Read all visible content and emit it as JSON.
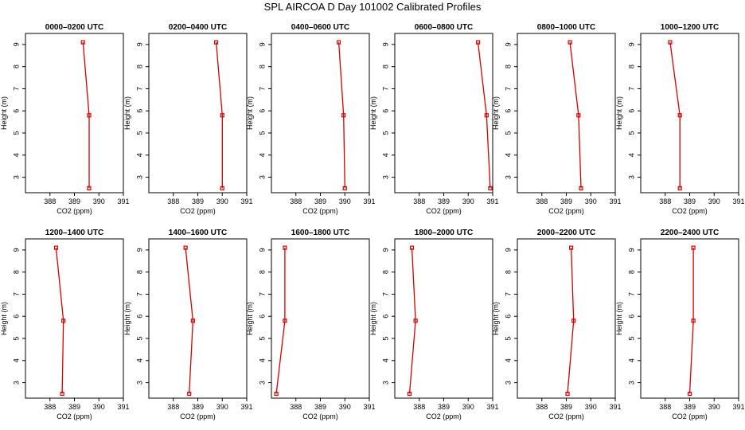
{
  "title": "SPL AIRCOA D  Day 101002  Calibrated Profiles",
  "colors": {
    "line": "#d40000",
    "axis": "#000000"
  },
  "chart_data": [
    {
      "type": "line",
      "title": "0000–0200 UTC",
      "xlabel": "CO2 (ppm)",
      "ylabel": "Height (m)",
      "xlim": [
        387,
        391
      ],
      "ylim": [
        2.3,
        9.5
      ],
      "xticks": [
        388,
        389,
        390,
        391
      ],
      "yticks": [
        3,
        4,
        5,
        6,
        7,
        8,
        9
      ],
      "grid": false,
      "series": [
        {
          "x": [
            389.6,
            389.6,
            389.35
          ],
          "y": [
            2.5,
            5.8,
            9.1
          ]
        }
      ]
    },
    {
      "type": "line",
      "title": "0200–0400 UTC",
      "xlabel": "CO2 (ppm)",
      "ylabel": "Height (m)",
      "xlim": [
        387,
        391
      ],
      "ylim": [
        2.3,
        9.5
      ],
      "xticks": [
        388,
        389,
        390,
        391
      ],
      "yticks": [
        3,
        4,
        5,
        6,
        7,
        8,
        9
      ],
      "grid": false,
      "series": [
        {
          "x": [
            390.0,
            390.0,
            389.75
          ],
          "y": [
            2.5,
            5.8,
            9.1
          ]
        }
      ]
    },
    {
      "type": "line",
      "title": "0400–0600 UTC",
      "xlabel": "CO2 (ppm)",
      "ylabel": "Height (m)",
      "xlim": [
        387,
        391
      ],
      "ylim": [
        2.3,
        9.5
      ],
      "xticks": [
        388,
        389,
        390,
        391
      ],
      "yticks": [
        3,
        4,
        5,
        6,
        7,
        8,
        9
      ],
      "grid": false,
      "series": [
        {
          "x": [
            390.0,
            389.95,
            389.75
          ],
          "y": [
            2.5,
            5.8,
            9.1
          ]
        }
      ]
    },
    {
      "type": "line",
      "title": "0600–0800 UTC",
      "xlabel": "CO2 (ppm)",
      "ylabel": "Height (m)",
      "xlim": [
        387,
        391
      ],
      "ylim": [
        2.3,
        9.5
      ],
      "xticks": [
        388,
        389,
        390,
        391
      ],
      "yticks": [
        3,
        4,
        5,
        6,
        7,
        8,
        9
      ],
      "grid": false,
      "series": [
        {
          "x": [
            390.9,
            390.75,
            390.4
          ],
          "y": [
            2.5,
            5.8,
            9.1
          ]
        }
      ]
    },
    {
      "type": "line",
      "title": "0800–1000 UTC",
      "xlabel": "CO2 (ppm)",
      "ylabel": "Height (m)",
      "xlim": [
        387,
        391
      ],
      "ylim": [
        2.3,
        9.5
      ],
      "xticks": [
        388,
        389,
        390,
        391
      ],
      "yticks": [
        3,
        4,
        5,
        6,
        7,
        8,
        9
      ],
      "grid": false,
      "series": [
        {
          "x": [
            389.6,
            389.5,
            389.15
          ],
          "y": [
            2.5,
            5.8,
            9.1
          ]
        }
      ]
    },
    {
      "type": "line",
      "title": "1000–1200 UTC",
      "xlabel": "CO2 (ppm)",
      "ylabel": "Height (m)",
      "xlim": [
        387,
        391
      ],
      "ylim": [
        2.3,
        9.5
      ],
      "xticks": [
        388,
        389,
        390,
        391
      ],
      "yticks": [
        3,
        4,
        5,
        6,
        7,
        8,
        9
      ],
      "grid": false,
      "series": [
        {
          "x": [
            388.6,
            388.6,
            388.2
          ],
          "y": [
            2.5,
            5.8,
            9.1
          ]
        }
      ]
    },
    {
      "type": "line",
      "title": "1200–1400 UTC",
      "xlabel": "CO2 (ppm)",
      "ylabel": "Height (m)",
      "xlim": [
        387,
        391
      ],
      "ylim": [
        2.3,
        9.5
      ],
      "xticks": [
        388,
        389,
        390,
        391
      ],
      "yticks": [
        3,
        4,
        5,
        6,
        7,
        8,
        9
      ],
      "grid": false,
      "series": [
        {
          "x": [
            388.5,
            388.55,
            388.25
          ],
          "y": [
            2.5,
            5.8,
            9.1
          ]
        }
      ]
    },
    {
      "type": "line",
      "title": "1400–1600 UTC",
      "xlabel": "CO2 (ppm)",
      "ylabel": "Height (m)",
      "xlim": [
        387,
        391
      ],
      "ylim": [
        2.3,
        9.5
      ],
      "xticks": [
        388,
        389,
        390,
        391
      ],
      "yticks": [
        3,
        4,
        5,
        6,
        7,
        8,
        9
      ],
      "grid": false,
      "series": [
        {
          "x": [
            388.65,
            388.8,
            388.5
          ],
          "y": [
            2.5,
            5.8,
            9.1
          ]
        }
      ]
    },
    {
      "type": "line",
      "title": "1600–1800 UTC",
      "xlabel": "CO2 (ppm)",
      "ylabel": "Height (m)",
      "xlim": [
        387,
        391
      ],
      "ylim": [
        2.3,
        9.5
      ],
      "xticks": [
        388,
        389,
        390,
        391
      ],
      "yticks": [
        3,
        4,
        5,
        6,
        7,
        8,
        9
      ],
      "grid": false,
      "series": [
        {
          "x": [
            387.2,
            387.55,
            387.55
          ],
          "y": [
            2.5,
            5.8,
            9.1
          ]
        }
      ]
    },
    {
      "type": "line",
      "title": "1800–2000 UTC",
      "xlabel": "CO2 (ppm)",
      "ylabel": "Height (m)",
      "xlim": [
        387,
        391
      ],
      "ylim": [
        2.3,
        9.5
      ],
      "xticks": [
        388,
        389,
        390,
        391
      ],
      "yticks": [
        3,
        4,
        5,
        6,
        7,
        8,
        9
      ],
      "grid": false,
      "series": [
        {
          "x": [
            387.6,
            387.85,
            387.7
          ],
          "y": [
            2.5,
            5.8,
            9.1
          ]
        }
      ]
    },
    {
      "type": "line",
      "title": "2000–2200 UTC",
      "xlabel": "CO2 (ppm)",
      "ylabel": "Height (m)",
      "xlim": [
        387,
        391
      ],
      "ylim": [
        2.3,
        9.5
      ],
      "xticks": [
        388,
        389,
        390,
        391
      ],
      "yticks": [
        3,
        4,
        5,
        6,
        7,
        8,
        9
      ],
      "grid": false,
      "series": [
        {
          "x": [
            389.05,
            389.3,
            389.2
          ],
          "y": [
            2.5,
            5.8,
            9.1
          ]
        }
      ]
    },
    {
      "type": "line",
      "title": "2200–2400 UTC",
      "xlabel": "CO2 (ppm)",
      "ylabel": "Height (m)",
      "xlim": [
        387,
        391
      ],
      "ylim": [
        2.3,
        9.5
      ],
      "xticks": [
        388,
        389,
        390,
        391
      ],
      "yticks": [
        3,
        4,
        5,
        6,
        7,
        8,
        9
      ],
      "grid": false,
      "series": [
        {
          "x": [
            389.0,
            389.15,
            389.15
          ],
          "y": [
            2.5,
            5.8,
            9.1
          ]
        }
      ]
    }
  ]
}
